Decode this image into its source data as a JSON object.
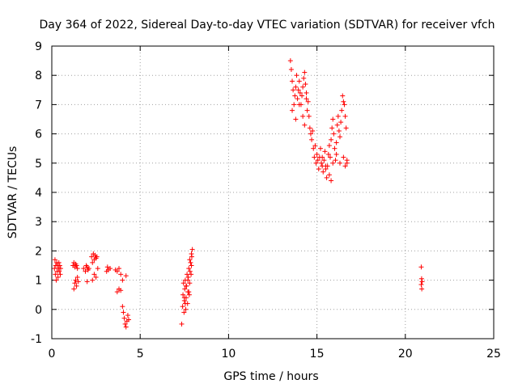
{
  "chart_data": {
    "type": "scatter",
    "title": "Day 364 of 2022, Sidereal Day-to-day VTEC variation (SDTVAR) for receiver vfch",
    "xlabel": "GPS time / hours",
    "ylabel": "SDTVAR / TECUs",
    "xlim": [
      0,
      25
    ],
    "ylim": [
      -1,
      9
    ],
    "xticks": [
      "0",
      "5",
      "10",
      "15",
      "20",
      "25"
    ],
    "yticks": [
      "-1",
      "0",
      "1",
      "2",
      "3",
      "4",
      "5",
      "6",
      "7",
      "8",
      "9"
    ],
    "grid": true,
    "marker": "+",
    "series": [
      {
        "name": "SDTVAR",
        "color": "#ff0000",
        "x": [
          0.15,
          0.18,
          0.2,
          0.22,
          0.25,
          0.28,
          0.3,
          0.32,
          0.35,
          0.38,
          0.4,
          0.42,
          0.45,
          0.48,
          0.5,
          1.2,
          1.25,
          1.3,
          1.35,
          1.4,
          1.45,
          1.25,
          1.3,
          1.35,
          1.4,
          1.45,
          1.5,
          1.8,
          1.9,
          1.95,
          2.0,
          2.05,
          2.1,
          2.0,
          2.25,
          2.3,
          2.35,
          2.4,
          2.45,
          2.5,
          2.55,
          2.3,
          2.4,
          2.5,
          2.6,
          3.1,
          3.15,
          3.2,
          3.3,
          3.6,
          3.7,
          3.8,
          3.9,
          3.7,
          3.8,
          3.9,
          4.0,
          4.0,
          4.05,
          4.1,
          4.15,
          4.2,
          4.25,
          4.3,
          4.35,
          4.2,
          7.35,
          7.4,
          7.42,
          7.45,
          7.48,
          7.5,
          7.52,
          7.55,
          7.58,
          7.6,
          7.62,
          7.65,
          7.68,
          7.7,
          7.72,
          7.75,
          7.78,
          7.8,
          7.82,
          7.85,
          7.88,
          7.9,
          7.92,
          7.95,
          7.5,
          7.6,
          7.7,
          7.8,
          7.9,
          7.55,
          7.75,
          13.5,
          13.55,
          13.6,
          13.65,
          13.7,
          13.75,
          13.8,
          13.85,
          13.9,
          13.95,
          14.0,
          14.05,
          14.1,
          14.15,
          14.2,
          14.25,
          14.3,
          14.35,
          14.4,
          14.45,
          14.5,
          14.55,
          14.6,
          14.65,
          14.7,
          14.75,
          14.8,
          14.85,
          14.9,
          14.95,
          15.0,
          15.05,
          15.1,
          15.15,
          15.2,
          15.25,
          15.3,
          15.35,
          15.4,
          15.45,
          15.5,
          15.55,
          15.6,
          15.65,
          15.7,
          15.75,
          15.8,
          15.85,
          15.9,
          15.95,
          16.0,
          16.05,
          16.1,
          16.15,
          16.2,
          16.25,
          16.3,
          16.35,
          16.4,
          16.45,
          16.5,
          16.55,
          16.6,
          16.65,
          16.7,
          13.6,
          13.8,
          14.0,
          14.2,
          14.4,
          15.3,
          15.5,
          15.7,
          15.9,
          16.1,
          16.3,
          16.5,
          16.6,
          16.7,
          15.8,
          14.3,
          20.9,
          20.92,
          20.95,
          20.9,
          20.93
        ],
        "y": [
          1.4,
          1.7,
          1.2,
          1.5,
          1.0,
          1.6,
          1.3,
          1.5,
          1.1,
          1.4,
          1.6,
          1.3,
          1.5,
          1.2,
          1.4,
          1.5,
          1.6,
          1.45,
          1.55,
          1.5,
          1.4,
          0.7,
          0.9,
          1.0,
          0.8,
          1.1,
          0.95,
          1.4,
          1.3,
          1.5,
          1.45,
          1.35,
          1.4,
          0.95,
          1.8,
          1.6,
          1.9,
          1.7,
          1.85,
          1.75,
          1.8,
          1.0,
          1.2,
          1.1,
          1.4,
          1.3,
          1.45,
          1.35,
          1.4,
          1.35,
          1.3,
          1.4,
          1.2,
          0.6,
          0.7,
          0.65,
          1.0,
          0.1,
          -0.1,
          -0.3,
          -0.5,
          -0.6,
          -0.4,
          -0.2,
          -0.35,
          1.15,
          -0.5,
          0.1,
          0.5,
          0.9,
          -0.1,
          0.3,
          0.7,
          1.0,
          0.0,
          0.4,
          0.8,
          1.2,
          0.2,
          0.6,
          1.1,
          1.4,
          0.5,
          0.9,
          1.3,
          1.6,
          1.2,
          1.5,
          1.8,
          2.05,
          0.4,
          0.8,
          1.0,
          1.7,
          1.9,
          0.2,
          0.6,
          8.5,
          8.2,
          7.8,
          7.5,
          7.0,
          7.3,
          7.6,
          8.0,
          7.2,
          7.5,
          7.8,
          7.4,
          7.0,
          7.3,
          7.6,
          7.9,
          8.1,
          7.7,
          7.2,
          6.8,
          7.1,
          6.6,
          6.2,
          6.0,
          5.8,
          6.1,
          5.5,
          5.2,
          5.6,
          5.0,
          5.3,
          5.1,
          4.8,
          5.2,
          5.5,
          5.0,
          4.9,
          4.7,
          5.1,
          5.4,
          4.8,
          4.5,
          4.9,
          5.3,
          5.6,
          5.2,
          5.8,
          6.2,
          6.5,
          6.0,
          5.5,
          5.1,
          5.7,
          6.3,
          6.6,
          6.1,
          5.9,
          6.4,
          6.8,
          7.3,
          7.1,
          7.0,
          6.6,
          6.2,
          5.0,
          6.8,
          6.5,
          7.0,
          6.6,
          7.4,
          5.2,
          4.9,
          4.6,
          5.0,
          5.3,
          5.0,
          5.2,
          4.9,
          5.1,
          4.4,
          6.3,
          1.45,
          1.05,
          0.95,
          0.85,
          0.7
        ]
      }
    ]
  }
}
